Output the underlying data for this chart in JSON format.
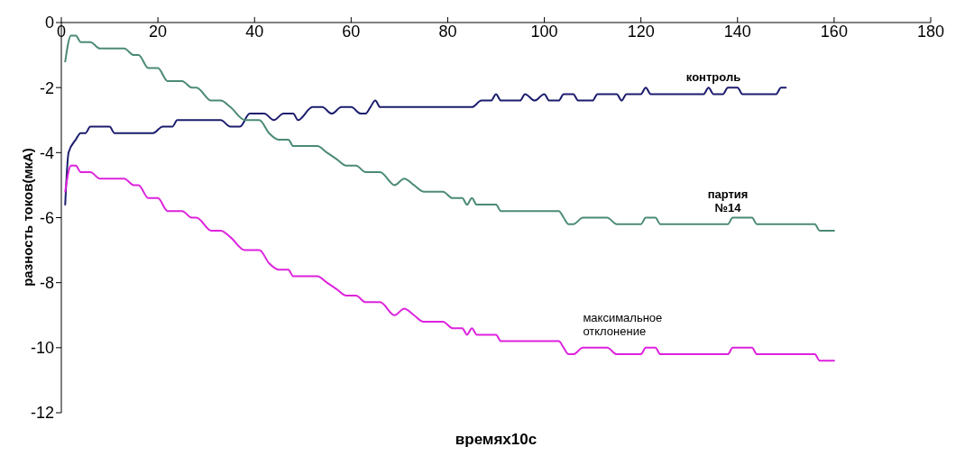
{
  "chart_data": {
    "type": "line",
    "xlabel": "времях10с",
    "ylabel": "разность токов(мкА)",
    "xlim": [
      0,
      180
    ],
    "xticks": [
      0,
      20,
      40,
      60,
      80,
      100,
      120,
      140,
      160,
      180
    ],
    "ylim": [
      -12,
      0
    ],
    "yticks": [
      -12,
      -10,
      -8,
      -6,
      -4,
      -2,
      0
    ],
    "grid": false,
    "legend": false,
    "marker": "none",
    "line_style": "solid",
    "series": [
      {
        "name": "контроль",
        "color": "#1c1c6e",
        "x": [
          0.8,
          1.5,
          3,
          4,
          5,
          6,
          10,
          11,
          19,
          21,
          23,
          24,
          33,
          35,
          37,
          39,
          42,
          44,
          46,
          48,
          49,
          52,
          54,
          56,
          58,
          60,
          62,
          63,
          64,
          65,
          66,
          85,
          87,
          89,
          90,
          91,
          95,
          96,
          98,
          100,
          101,
          103,
          104,
          106,
          107,
          110,
          111,
          115,
          116,
          117,
          120,
          121,
          122,
          133,
          134,
          135,
          137,
          138,
          140,
          141,
          148,
          149,
          150
        ],
        "values": [
          -5.6,
          -4.0,
          -3.6,
          -3.4,
          -3.4,
          -3.2,
          -3.2,
          -3.4,
          -3.4,
          -3.2,
          -3.2,
          -3.0,
          -3.0,
          -3.2,
          -3.2,
          -2.8,
          -2.8,
          -3.0,
          -2.8,
          -2.8,
          -3.0,
          -2.6,
          -2.6,
          -2.8,
          -2.6,
          -2.6,
          -2.8,
          -2.8,
          -2.6,
          -2.4,
          -2.6,
          -2.6,
          -2.4,
          -2.4,
          -2.2,
          -2.4,
          -2.4,
          -2.2,
          -2.4,
          -2.2,
          -2.4,
          -2.4,
          -2.2,
          -2.2,
          -2.4,
          -2.4,
          -2.2,
          -2.2,
          -2.4,
          -2.2,
          -2.2,
          -2.0,
          -2.2,
          -2.2,
          -2.0,
          -2.2,
          -2.2,
          -2.0,
          -2.0,
          -2.2,
          -2.2,
          -2.0,
          -2.0
        ]
      },
      {
        "name": "партия №14",
        "color": "#4a8a76",
        "x": [
          0.8,
          2,
          3,
          4,
          6,
          8,
          13,
          15,
          16,
          18,
          20,
          22,
          25,
          27,
          28,
          31,
          33,
          35,
          38,
          41,
          43,
          45,
          47,
          48,
          53,
          55,
          57,
          59,
          61,
          63,
          66,
          69,
          71,
          73,
          75,
          79,
          81,
          83,
          84,
          85,
          86,
          90,
          91,
          103,
          104,
          105,
          106,
          108,
          113,
          115,
          120,
          121,
          123,
          124,
          138,
          139,
          143,
          144,
          156,
          157,
          160
        ],
        "values": [
          -1.2,
          -0.4,
          -0.4,
          -0.6,
          -0.6,
          -0.8,
          -0.8,
          -1.0,
          -1.0,
          -1.4,
          -1.4,
          -1.8,
          -1.8,
          -2.0,
          -2.0,
          -2.4,
          -2.4,
          -2.6,
          -3.0,
          -3.0,
          -3.4,
          -3.6,
          -3.6,
          -3.8,
          -3.8,
          -4.0,
          -4.2,
          -4.4,
          -4.4,
          -4.6,
          -4.6,
          -5.0,
          -4.8,
          -5.0,
          -5.2,
          -5.2,
          -5.4,
          -5.4,
          -5.6,
          -5.4,
          -5.6,
          -5.6,
          -5.8,
          -5.8,
          -6.0,
          -6.2,
          -6.2,
          -6.0,
          -6.0,
          -6.2,
          -6.2,
          -6.0,
          -6.0,
          -6.2,
          -6.2,
          -6.0,
          -6.0,
          -6.2,
          -6.2,
          -6.4,
          -6.4
        ]
      },
      {
        "name": "максимальное отклонение",
        "color": "#dd22dd",
        "x": [
          0.8,
          2,
          3,
          4,
          6,
          8,
          13,
          15,
          16,
          18,
          20,
          22,
          25,
          27,
          28,
          31,
          33,
          35,
          38,
          41,
          43,
          45,
          47,
          48,
          53,
          55,
          57,
          59,
          61,
          63,
          66,
          69,
          71,
          73,
          75,
          79,
          81,
          83,
          84,
          85,
          86,
          90,
          91,
          103,
          104,
          105,
          106,
          108,
          113,
          115,
          120,
          121,
          123,
          124,
          138,
          139,
          143,
          144,
          156,
          157,
          160
        ],
        "values": [
          -5.2,
          -4.4,
          -4.4,
          -4.6,
          -4.6,
          -4.8,
          -4.8,
          -5.0,
          -5.0,
          -5.4,
          -5.4,
          -5.8,
          -5.8,
          -6.0,
          -6.0,
          -6.4,
          -6.4,
          -6.6,
          -7.0,
          -7.0,
          -7.4,
          -7.6,
          -7.6,
          -7.8,
          -7.8,
          -8.0,
          -8.2,
          -8.4,
          -8.4,
          -8.6,
          -8.6,
          -9.0,
          -8.8,
          -9.0,
          -9.2,
          -9.2,
          -9.4,
          -9.4,
          -9.6,
          -9.4,
          -9.6,
          -9.6,
          -9.8,
          -9.8,
          -10.0,
          -10.2,
          -10.2,
          -10.0,
          -10.0,
          -10.2,
          -10.2,
          -10.0,
          -10.0,
          -10.2,
          -10.2,
          -10.0,
          -10.0,
          -10.2,
          -10.2,
          -10.4,
          -10.4
        ]
      }
    ]
  }
}
